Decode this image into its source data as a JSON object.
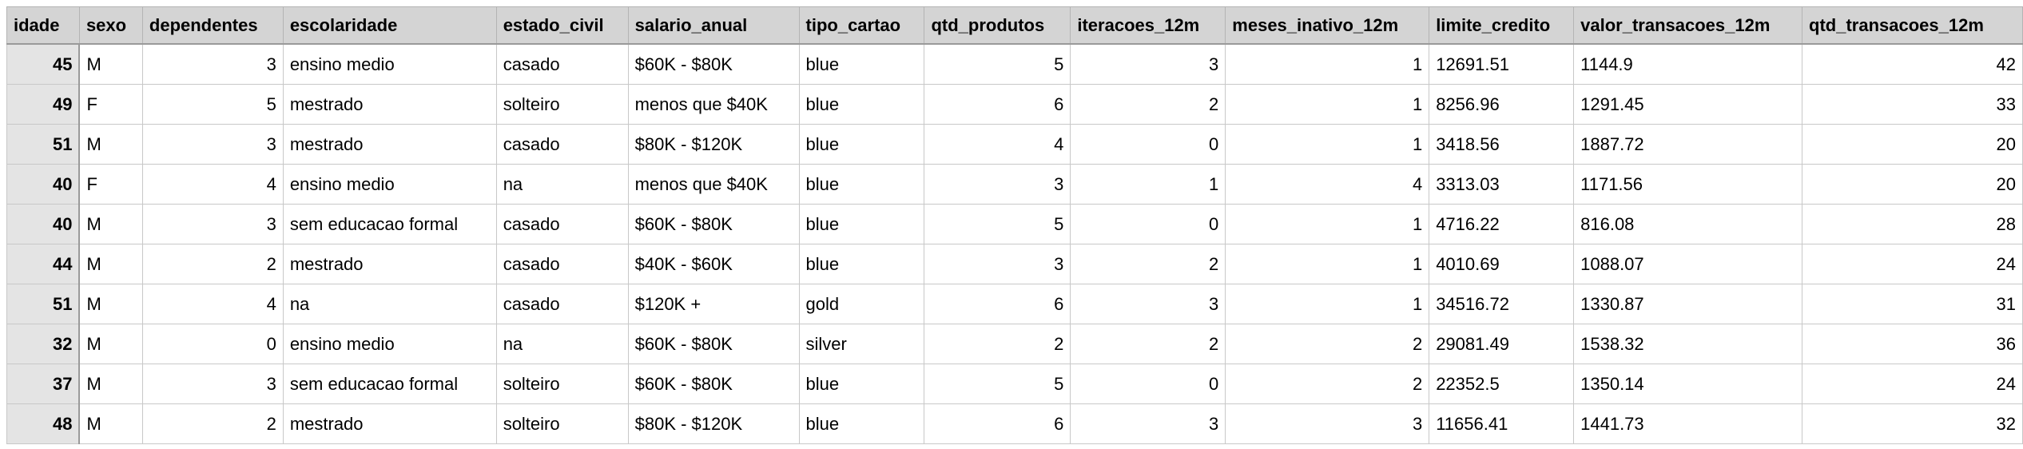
{
  "table": {
    "columns": [
      "idade",
      "sexo",
      "dependentes",
      "escolaridade",
      "estado_civil",
      "salario_anual",
      "tipo_cartao",
      "qtd_produtos",
      "iteracoes_12m",
      "meses_inativo_12m",
      "limite_credito",
      "valor_transacoes_12m",
      "qtd_transacoes_12m"
    ],
    "rows": [
      [
        "45",
        "M",
        "3",
        "ensino medio",
        "casado",
        "$60K - $80K",
        "blue",
        "5",
        "3",
        "1",
        "12691.51",
        "1144.9",
        "42"
      ],
      [
        "49",
        "F",
        "5",
        "mestrado",
        "solteiro",
        "menos que $40K",
        "blue",
        "6",
        "2",
        "1",
        "8256.96",
        "1291.45",
        "33"
      ],
      [
        "51",
        "M",
        "3",
        "mestrado",
        "casado",
        "$80K - $120K",
        "blue",
        "4",
        "0",
        "1",
        "3418.56",
        "1887.72",
        "20"
      ],
      [
        "40",
        "F",
        "4",
        "ensino medio",
        "na",
        "menos que $40K",
        "blue",
        "3",
        "1",
        "4",
        "3313.03",
        "1171.56",
        "20"
      ],
      [
        "40",
        "M",
        "3",
        "sem educacao formal",
        "casado",
        "$60K - $80K",
        "blue",
        "5",
        "0",
        "1",
        "4716.22",
        "816.08",
        "28"
      ],
      [
        "44",
        "M",
        "2",
        "mestrado",
        "casado",
        "$40K - $60K",
        "blue",
        "3",
        "2",
        "1",
        "4010.69",
        "1088.07",
        "24"
      ],
      [
        "51",
        "M",
        "4",
        "na",
        "casado",
        "$120K +",
        "gold",
        "6",
        "3",
        "1",
        "34516.72",
        "1330.87",
        "31"
      ],
      [
        "32",
        "M",
        "0",
        "ensino medio",
        "na",
        "$60K - $80K",
        "silver",
        "2",
        "2",
        "2",
        "29081.49",
        "1538.32",
        "36"
      ],
      [
        "37",
        "M",
        "3",
        "sem educacao formal",
        "solteiro",
        "$60K - $80K",
        "blue",
        "5",
        "0",
        "2",
        "22352.5",
        "1350.14",
        "24"
      ],
      [
        "48",
        "M",
        "2",
        "mestrado",
        "solteiro",
        "$80K - $120K",
        "blue",
        "6",
        "3",
        "3",
        "11656.41",
        "1441.73",
        "32"
      ]
    ]
  }
}
